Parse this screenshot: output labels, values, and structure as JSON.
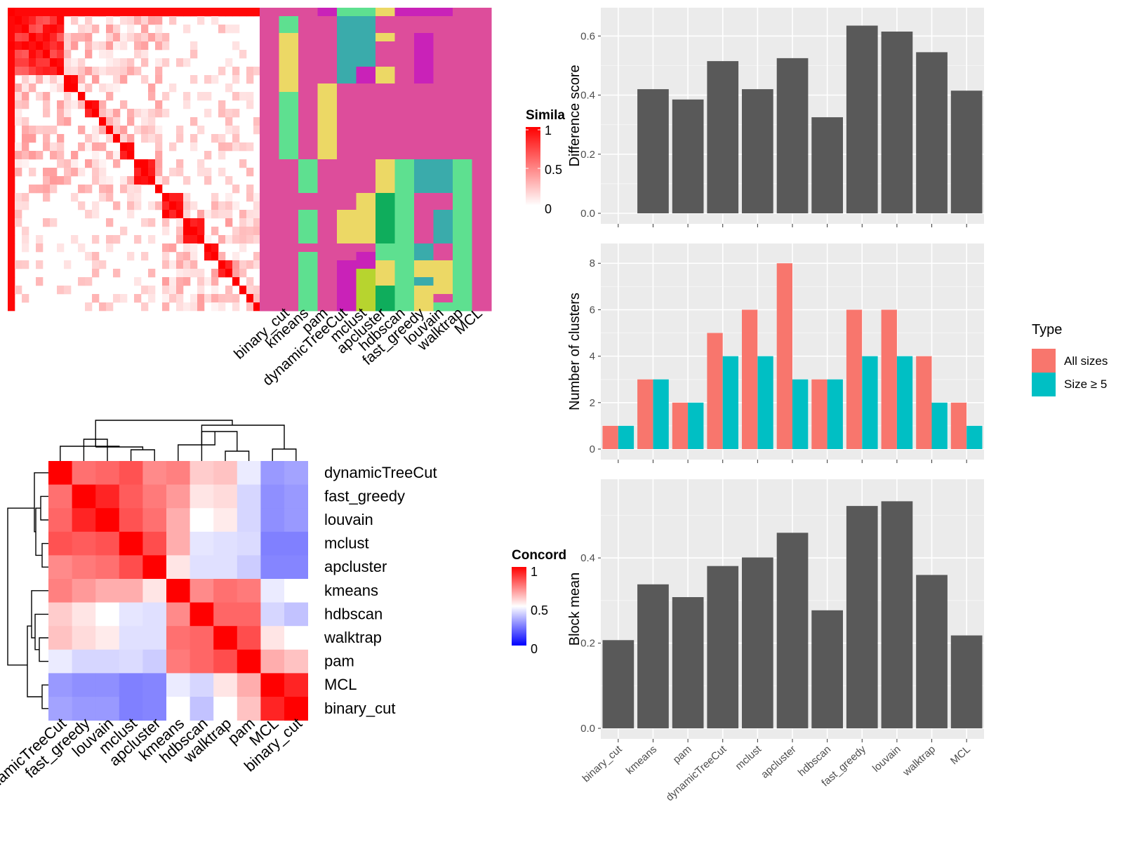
{
  "methods": [
    "binary_cut",
    "kmeans",
    "pam",
    "dynamicTreeCut",
    "mclust",
    "apcluster",
    "hdbscan",
    "fast_greedy",
    "louvain",
    "walktrap",
    "MCL"
  ],
  "heatmap_similarity": {
    "legend_title": "Simila",
    "legend_ticks": [
      "1",
      "0.5",
      "0"
    ],
    "colors": {
      "high": "#ff0000",
      "low": "#ffffff"
    }
  },
  "class_palette": [
    "#dd4d9b",
    "#5ee090",
    "#ecd865",
    "#c922b8",
    "#3aabab",
    "#0fad5c",
    "#b7d42f"
  ],
  "heatmap_concordance": {
    "legend_title": "Concord",
    "legend_ticks": [
      "1",
      "0.5",
      "0"
    ],
    "colors": {
      "high": "#ff0000",
      "mid": "#ffffff",
      "low": "#0000ff"
    }
  },
  "chart_data": [
    {
      "type": "heatmap",
      "name": "concordance",
      "rows": [
        "dynamicTreeCut",
        "fast_greedy",
        "louvain",
        "mclust",
        "apcluster",
        "kmeans",
        "hdbscan",
        "walktrap",
        "pam",
        "MCL",
        "binary_cut"
      ],
      "columns": [
        "dynamicTreeCut",
        "fast_greedy",
        "louvain",
        "mclust",
        "apcluster",
        "kmeans",
        "hdbscan",
        "walktrap",
        "pam",
        "MCL",
        "binary_cut"
      ],
      "values": [
        [
          1.0,
          0.78,
          0.8,
          0.84,
          0.73,
          0.75,
          0.6,
          0.62,
          0.46,
          0.3,
          0.32
        ],
        [
          0.78,
          1.0,
          0.93,
          0.82,
          0.76,
          0.7,
          0.55,
          0.57,
          0.42,
          0.28,
          0.3
        ],
        [
          0.8,
          0.93,
          1.0,
          0.84,
          0.78,
          0.66,
          0.5,
          0.54,
          0.42,
          0.28,
          0.3
        ],
        [
          0.84,
          0.82,
          0.84,
          1.0,
          0.85,
          0.66,
          0.45,
          0.44,
          0.43,
          0.25,
          0.25
        ],
        [
          0.73,
          0.76,
          0.78,
          0.85,
          1.0,
          0.55,
          0.44,
          0.44,
          0.4,
          0.26,
          0.26
        ],
        [
          0.75,
          0.7,
          0.66,
          0.66,
          0.55,
          1.0,
          0.73,
          0.78,
          0.76,
          0.46,
          0.5
        ],
        [
          0.6,
          0.55,
          0.5,
          0.45,
          0.44,
          0.73,
          1.0,
          0.8,
          0.8,
          0.42,
          0.38
        ],
        [
          0.62,
          0.57,
          0.54,
          0.44,
          0.44,
          0.78,
          0.8,
          1.0,
          0.85,
          0.55,
          0.5
        ],
        [
          0.46,
          0.42,
          0.42,
          0.43,
          0.4,
          0.76,
          0.8,
          0.85,
          1.0,
          0.66,
          0.62
        ],
        [
          0.3,
          0.28,
          0.28,
          0.25,
          0.26,
          0.46,
          0.42,
          0.55,
          0.66,
          1.0,
          0.93
        ],
        [
          0.32,
          0.3,
          0.3,
          0.25,
          0.26,
          0.5,
          0.38,
          0.5,
          0.62,
          0.93,
          1.0
        ]
      ]
    },
    {
      "type": "bar",
      "name": "difference_score",
      "categories": [
        "binary_cut",
        "kmeans",
        "pam",
        "dynamicTreeCut",
        "mclust",
        "apcluster",
        "hdbscan",
        "fast_greedy",
        "louvain",
        "walktrap",
        "MCL"
      ],
      "values": [
        0.0,
        0.42,
        0.385,
        0.515,
        0.42,
        0.525,
        0.325,
        0.635,
        0.615,
        0.545,
        0.415
      ],
      "ylabel": "Difference score",
      "ylim": [
        0,
        0.66
      ],
      "yticks": [
        "0.0",
        "0.2",
        "0.4",
        "0.6"
      ],
      "bar_color": "#595959"
    },
    {
      "type": "bar",
      "name": "number_of_clusters",
      "categories": [
        "binary_cut",
        "kmeans",
        "pam",
        "dynamicTreeCut",
        "mclust",
        "apcluster",
        "hdbscan",
        "fast_greedy",
        "louvain",
        "walktrap",
        "MCL"
      ],
      "series": [
        {
          "name": "All sizes",
          "values": [
            1,
            3,
            2,
            5,
            6,
            8,
            3,
            6,
            6,
            4,
            2
          ],
          "color": "#f8766d"
        },
        {
          "name": "Size ≥ 5",
          "values": [
            1,
            3,
            2,
            4,
            4,
            3,
            3,
            4,
            4,
            2,
            1
          ],
          "color": "#00bfc4"
        }
      ],
      "ylabel": "Number of clusters",
      "ylim": [
        0,
        8.4
      ],
      "yticks": [
        "0",
        "2",
        "4",
        "6",
        "8"
      ],
      "legend": {
        "title": "Type",
        "placement": "right"
      }
    },
    {
      "type": "bar",
      "name": "block_mean",
      "categories": [
        "binary_cut",
        "kmeans",
        "pam",
        "dynamicTreeCut",
        "mclust",
        "apcluster",
        "hdbscan",
        "fast_greedy",
        "louvain",
        "walktrap",
        "MCL"
      ],
      "values": [
        0.207,
        0.338,
        0.308,
        0.381,
        0.401,
        0.459,
        0.277,
        0.522,
        0.533,
        0.36,
        0.218
      ],
      "ylabel": "Block mean",
      "ylim": [
        0,
        0.56
      ],
      "yticks": [
        "0.0",
        "0.2",
        "0.4"
      ],
      "bar_color": "#595959"
    }
  ]
}
